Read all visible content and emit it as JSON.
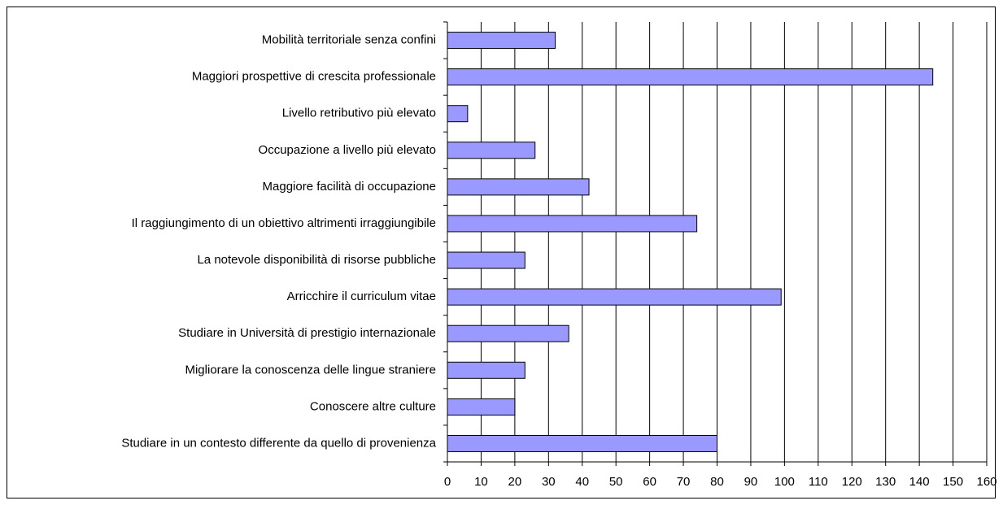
{
  "chart_data": {
    "type": "bar",
    "orientation": "horizontal",
    "categories": [
      "Mobilità territoriale senza confini",
      "Maggiori prospettive di crescita professionale",
      "Livello retributivo più elevato",
      "Occupazione a livello più elevato",
      "Maggiore facilità di occupazione",
      "Il raggiungimento di un obiettivo altrimenti irraggiungibile",
      "La notevole disponibilità di risorse pubbliche",
      "Arricchire il curriculum vitae",
      "Studiare in Università di prestigio internazionale",
      "Migliorare la conoscenza delle lingue straniere",
      "Conoscere altre culture",
      "Studiare in un contesto differente da quello di provenienza"
    ],
    "values": [
      32,
      144,
      6,
      26,
      42,
      74,
      23,
      99,
      36,
      23,
      20,
      80
    ],
    "color": "#9999ff",
    "xlim": [
      0,
      160
    ],
    "xticks": [
      0,
      10,
      20,
      30,
      40,
      50,
      60,
      70,
      80,
      90,
      100,
      110,
      120,
      130,
      140,
      150,
      160
    ],
    "grid": true
  }
}
